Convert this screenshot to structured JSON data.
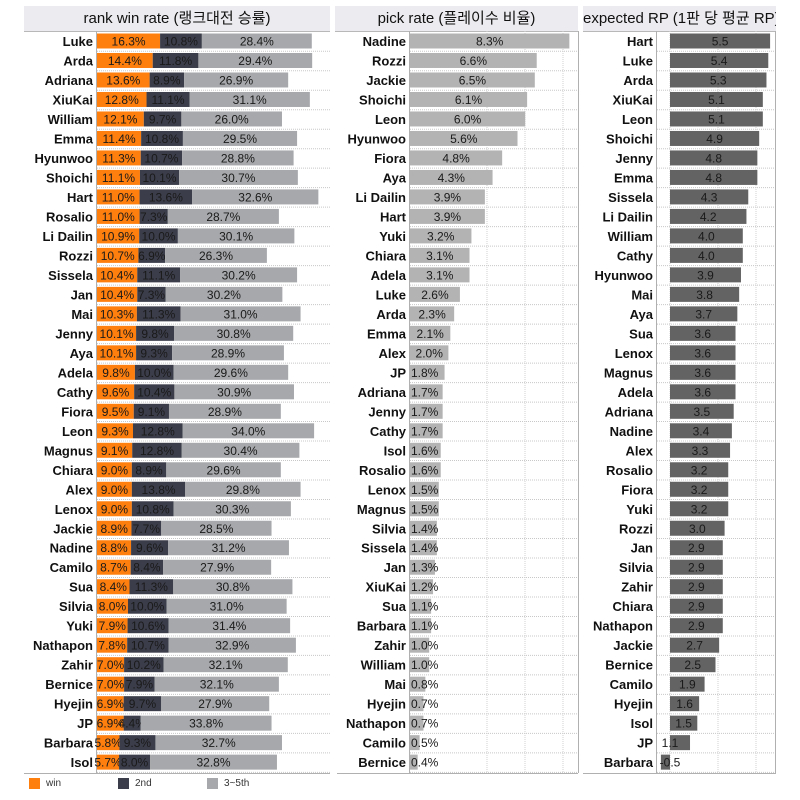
{
  "colors": {
    "win": "#ff7f0e",
    "second": "#3b3d4a",
    "third_fifth": "#a6a8ab",
    "pick": "#b3b3b3",
    "rp": "#636363",
    "header_bg": "#ececf0"
  },
  "legend": [
    {
      "key": "win",
      "label": "win"
    },
    {
      "key": "second",
      "label": "2nd"
    },
    {
      "key": "third_fifth",
      "label": "3~5th"
    }
  ],
  "chart_data": [
    {
      "type": "bar",
      "orientation": "horizontal",
      "stacked": true,
      "title": "rank win rate (랭크대전 승률)",
      "xlabel": "",
      "ylabel": "",
      "grid": true,
      "legend_position": "bottom-left",
      "categories": [
        "Luke",
        "Arda",
        "Adriana",
        "XiuKai",
        "William",
        "Emma",
        "Hyunwoo",
        "Shoichi",
        "Hart",
        "Rosalio",
        "Li Dailin",
        "Rozzi",
        "Sissela",
        "Jan",
        "Mai",
        "Jenny",
        "Aya",
        "Adela",
        "Cathy",
        "Fiora",
        "Leon",
        "Magnus",
        "Chiara",
        "Alex",
        "Lenox",
        "Jackie",
        "Nadine",
        "Camilo",
        "Sua",
        "Silvia",
        "Yuki",
        "Nathapon",
        "Zahir",
        "Bernice",
        "Hyejin",
        "JP",
        "Barbara",
        "Isol"
      ],
      "series": [
        {
          "name": "win",
          "values": [
            16.3,
            14.4,
            13.6,
            12.8,
            12.1,
            11.4,
            11.3,
            11.1,
            11.0,
            11.0,
            10.9,
            10.7,
            10.4,
            10.4,
            10.3,
            10.1,
            10.1,
            9.8,
            9.6,
            9.5,
            9.3,
            9.1,
            9.0,
            9.0,
            9.0,
            8.9,
            8.8,
            8.7,
            8.4,
            8.0,
            7.9,
            7.8,
            7.0,
            7.0,
            6.9,
            6.9,
            5.8,
            5.7
          ]
        },
        {
          "name": "2nd",
          "values": [
            10.8,
            11.8,
            8.9,
            11.1,
            9.7,
            10.8,
            10.7,
            10.1,
            13.6,
            7.3,
            10.0,
            6.9,
            11.1,
            7.3,
            11.3,
            9.8,
            9.3,
            10.0,
            10.4,
            9.1,
            12.8,
            12.8,
            8.9,
            13.8,
            10.8,
            7.7,
            9.6,
            8.4,
            11.3,
            10.0,
            10.6,
            10.7,
            10.2,
            7.9,
            9.7,
            4.4,
            9.3,
            8.0
          ]
        },
        {
          "name": "3~5th",
          "values": [
            28.4,
            29.4,
            26.9,
            31.1,
            26.0,
            29.5,
            28.8,
            30.7,
            32.6,
            28.7,
            30.1,
            26.3,
            30.2,
            30.2,
            31.0,
            30.8,
            28.9,
            29.6,
            30.9,
            28.9,
            34.0,
            30.4,
            29.6,
            29.8,
            30.3,
            28.5,
            31.2,
            27.9,
            30.8,
            31.0,
            31.4,
            32.9,
            32.1,
            32.1,
            27.9,
            33.8,
            32.7,
            32.8
          ]
        }
      ],
      "value_format": "percent"
    },
    {
      "type": "bar",
      "orientation": "horizontal",
      "title": "pick rate (플레이수 비율)",
      "xlabel": "",
      "ylabel": "",
      "grid": true,
      "categories": [
        "Nadine",
        "Rozzi",
        "Jackie",
        "Shoichi",
        "Leon",
        "Hyunwoo",
        "Fiora",
        "Aya",
        "Li Dailin",
        "Hart",
        "Yuki",
        "Chiara",
        "Adela",
        "Luke",
        "Arda",
        "Emma",
        "Alex",
        "JP",
        "Adriana",
        "Jenny",
        "Cathy",
        "Isol",
        "Rosalio",
        "Lenox",
        "Magnus",
        "Silvia",
        "Sissela",
        "Jan",
        "XiuKai",
        "Sua",
        "Barbara",
        "Zahir",
        "William",
        "Mai",
        "Hyejin",
        "Nathapon",
        "Camilo",
        "Bernice"
      ],
      "values": [
        8.3,
        6.6,
        6.5,
        6.1,
        6.0,
        5.6,
        4.8,
        4.3,
        3.9,
        3.9,
        3.2,
        3.1,
        3.1,
        2.6,
        2.3,
        2.1,
        2.0,
        1.8,
        1.7,
        1.7,
        1.7,
        1.6,
        1.6,
        1.5,
        1.5,
        1.4,
        1.4,
        1.3,
        1.2,
        1.1,
        1.1,
        1.0,
        1.0,
        0.8,
        0.7,
        0.7,
        0.5,
        0.4
      ],
      "value_format": "percent"
    },
    {
      "type": "bar",
      "orientation": "horizontal",
      "title": "expected RP (1판 당 평균 RP)",
      "xlabel": "",
      "ylabel": "",
      "grid": true,
      "categories": [
        "Hart",
        "Luke",
        "Arda",
        "XiuKai",
        "Leon",
        "Shoichi",
        "Jenny",
        "Emma",
        "Sissela",
        "Li Dailin",
        "William",
        "Cathy",
        "Hyunwoo",
        "Mai",
        "Aya",
        "Sua",
        "Lenox",
        "Magnus",
        "Adela",
        "Adriana",
        "Nadine",
        "Alex",
        "Rosalio",
        "Fiora",
        "Yuki",
        "Rozzi",
        "Jan",
        "Silvia",
        "Zahir",
        "Chiara",
        "Nathapon",
        "Jackie",
        "Bernice",
        "Camilo",
        "Hyejin",
        "Isol",
        "JP",
        "Barbara"
      ],
      "values": [
        5.5,
        5.4,
        5.3,
        5.1,
        5.1,
        4.9,
        4.8,
        4.8,
        4.3,
        4.2,
        4.0,
        4.0,
        3.9,
        3.8,
        3.7,
        3.6,
        3.6,
        3.6,
        3.6,
        3.5,
        3.4,
        3.3,
        3.2,
        3.2,
        3.2,
        3.0,
        2.9,
        2.9,
        2.9,
        2.9,
        2.9,
        2.7,
        2.5,
        1.9,
        1.6,
        1.5,
        1.1,
        -0.5
      ],
      "value_format": "decimal1"
    }
  ]
}
